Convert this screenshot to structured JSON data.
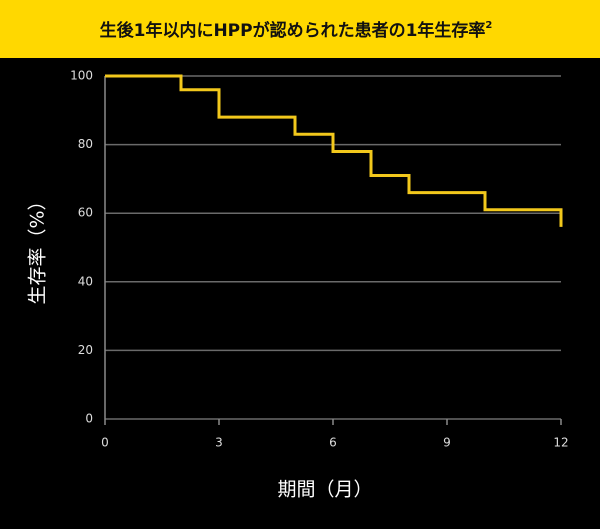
{
  "chart_data": {
    "type": "step",
    "title": "生後1年以内にHPPが認められた患者の1年生存率",
    "title_note": "2",
    "xlabel": "期間（月）",
    "ylabel": "生存率（%）",
    "x": [
      0,
      2,
      3,
      5,
      6,
      7,
      8,
      10,
      12
    ],
    "values": [
      100,
      96,
      88,
      83,
      78,
      71,
      66,
      61,
      56
    ],
    "color": "#f2c81c",
    "xlim": [
      0,
      12
    ],
    "xticks": [
      0,
      3,
      6,
      9,
      12
    ],
    "ylim": [
      0,
      100
    ],
    "yticks": [
      0,
      20,
      40,
      60,
      80,
      100
    ],
    "grid": true
  }
}
